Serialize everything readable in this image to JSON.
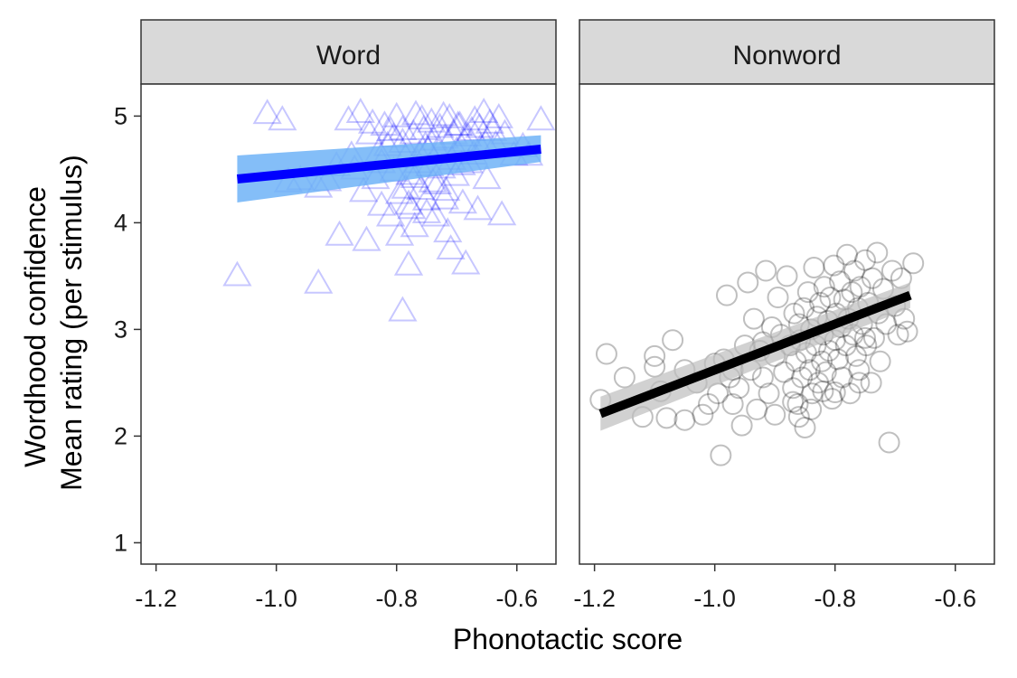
{
  "chart_data": {
    "type": "scatter",
    "xlabel": "Phonotactic score",
    "ylabel_lines": [
      "Wordhood confidence",
      "Mean rating (per stimulus)"
    ],
    "xlim": [
      -1.225,
      -0.535
    ],
    "ylim": [
      0.8,
      5.3
    ],
    "x_ticks": [
      -1.2,
      -1.0,
      -0.8,
      -0.6
    ],
    "x_tick_labels": [
      "-1.2",
      "-1.0",
      "-0.8",
      "-0.6"
    ],
    "y_ticks": [
      1,
      2,
      3,
      4,
      5
    ],
    "y_tick_labels": [
      "1",
      "2",
      "3",
      "4",
      "5"
    ],
    "grid": false,
    "panel_strip_color": "#d9d9d9",
    "panels": [
      {
        "strip": "Word",
        "marker": "triangle",
        "point_color": "#0000ff",
        "line_color": "#0000ff",
        "ribbon_color": "#6fb3f7",
        "fit": {
          "x": [
            -1.065,
            -0.56
          ],
          "y": [
            4.41,
            4.69
          ]
        },
        "ribbon": {
          "x": [
            -1.065,
            -0.56
          ],
          "lower": [
            4.19,
            4.57
          ],
          "upper": [
            4.63,
            4.82
          ]
        },
        "points": [
          [
            -1.065,
            3.49
          ],
          [
            -1.015,
            5.01
          ],
          [
            -0.99,
            4.95
          ],
          [
            -0.98,
            4.37
          ],
          [
            -0.96,
            4.39
          ],
          [
            -0.93,
            3.42
          ],
          [
            -0.93,
            4.32
          ],
          [
            -0.915,
            4.38
          ],
          [
            -0.9,
            4.52
          ],
          [
            -0.895,
            3.87
          ],
          [
            -0.88,
            4.95
          ],
          [
            -0.87,
            4.49
          ],
          [
            -0.86,
            5.02
          ],
          [
            -0.85,
            3.82
          ],
          [
            -0.845,
            4.82
          ],
          [
            -0.84,
            4.92
          ],
          [
            -0.835,
            4.4
          ],
          [
            -0.83,
            4.65
          ],
          [
            -0.825,
            4.55
          ],
          [
            -0.82,
            4.9
          ],
          [
            -0.815,
            4.71
          ],
          [
            -0.81,
            4.85
          ],
          [
            -0.805,
            4.79
          ],
          [
            -0.8,
            4.98
          ],
          [
            -0.795,
            3.87
          ],
          [
            -0.79,
            3.16
          ],
          [
            -0.79,
            4.86
          ],
          [
            -0.785,
            4.31
          ],
          [
            -0.785,
            4.6
          ],
          [
            -0.78,
            3.59
          ],
          [
            -0.78,
            4.16
          ],
          [
            -0.778,
            4.44
          ],
          [
            -0.775,
            4.12
          ],
          [
            -0.772,
            4.82
          ],
          [
            -0.77,
            3.95
          ],
          [
            -0.768,
            5.0
          ],
          [
            -0.765,
            4.55
          ],
          [
            -0.762,
            4.63
          ],
          [
            -0.76,
            4.3
          ],
          [
            -0.755,
            4.86
          ],
          [
            -0.752,
            4.71
          ],
          [
            -0.75,
            4.2
          ],
          [
            -0.745,
            4.52
          ],
          [
            -0.742,
            4.93
          ],
          [
            -0.74,
            4.37
          ],
          [
            -0.738,
            4.76
          ],
          [
            -0.735,
            4.05
          ],
          [
            -0.73,
            4.65
          ],
          [
            -0.728,
            4.88
          ],
          [
            -0.725,
            4.5
          ],
          [
            -0.72,
            4.78
          ],
          [
            -0.718,
            4.29
          ],
          [
            -0.715,
            3.9
          ],
          [
            -0.712,
            4.97
          ],
          [
            -0.71,
            3.74
          ],
          [
            -0.708,
            4.58
          ],
          [
            -0.705,
            4.82
          ],
          [
            -0.702,
            4.43
          ],
          [
            -0.7,
            4.66
          ],
          [
            -0.695,
            4.9
          ],
          [
            -0.69,
            4.17
          ],
          [
            -0.688,
            4.75
          ],
          [
            -0.685,
            3.6
          ],
          [
            -0.68,
            4.55
          ],
          [
            -0.675,
            4.85
          ],
          [
            -0.67,
            4.95
          ],
          [
            -0.665,
            4.11
          ],
          [
            -0.66,
            4.69
          ],
          [
            -0.655,
            5.02
          ],
          [
            -0.65,
            4.4
          ],
          [
            -0.645,
            4.92
          ],
          [
            -0.64,
            4.85
          ],
          [
            -0.635,
            4.72
          ],
          [
            -0.63,
            4.97
          ],
          [
            -0.625,
            4.06
          ],
          [
            -0.62,
            4.82
          ],
          [
            -0.605,
            4.62
          ],
          [
            -0.59,
            4.7
          ],
          [
            -0.58,
            4.62
          ],
          [
            -0.56,
            4.95
          ],
          [
            -0.875,
            4.62
          ],
          [
            -0.855,
            4.28
          ],
          [
            -0.825,
            4.15
          ],
          [
            -0.805,
            4.47
          ],
          [
            -0.795,
            4.26
          ],
          [
            -0.758,
            4.96
          ],
          [
            -0.748,
            4.67
          ],
          [
            -0.732,
            4.35
          ],
          [
            -0.722,
            4.99
          ],
          [
            -0.698,
            4.9
          ],
          [
            -0.692,
            4.53
          ],
          [
            -0.682,
            4.8
          ],
          [
            -0.672,
            4.63
          ],
          [
            -0.662,
            4.88
          ],
          [
            -0.652,
            4.73
          ],
          [
            -0.81,
            4.05
          ],
          [
            -0.79,
            4.74
          ],
          [
            -0.77,
            4.41
          ],
          [
            -0.75,
            4.08
          ],
          [
            -0.72,
            4.21
          ]
        ]
      },
      {
        "strip": "Nonword",
        "marker": "circle",
        "point_color": "#000000",
        "line_color": "#000000",
        "ribbon_color": "#bdbdbd",
        "fit": {
          "x": [
            -1.19,
            -0.675
          ],
          "y": [
            2.21,
            3.32
          ]
        },
        "ribbon": {
          "x": [
            -1.19,
            -0.675
          ],
          "lower": [
            2.05,
            3.2
          ],
          "upper": [
            2.37,
            3.44
          ]
        },
        "points": [
          [
            -1.19,
            2.34
          ],
          [
            -1.18,
            2.77
          ],
          [
            -1.15,
            2.55
          ],
          [
            -1.12,
            2.18
          ],
          [
            -1.1,
            2.65
          ],
          [
            -1.1,
            2.75
          ],
          [
            -1.09,
            2.42
          ],
          [
            -1.08,
            2.17
          ],
          [
            -1.07,
            2.9
          ],
          [
            -1.05,
            2.62
          ],
          [
            -1.05,
            2.15
          ],
          [
            -1.03,
            2.5
          ],
          [
            -1.02,
            2.2
          ],
          [
            -1.01,
            2.3
          ],
          [
            -1.0,
            2.68
          ],
          [
            -0.995,
            2.4
          ],
          [
            -0.99,
            1.82
          ],
          [
            -0.985,
            2.72
          ],
          [
            -0.98,
            3.32
          ],
          [
            -0.975,
            2.55
          ],
          [
            -0.97,
            2.3
          ],
          [
            -0.96,
            2.45
          ],
          [
            -0.955,
            2.1
          ],
          [
            -0.95,
            2.85
          ],
          [
            -0.945,
            3.44
          ],
          [
            -0.94,
            2.62
          ],
          [
            -0.935,
            3.1
          ],
          [
            -0.93,
            2.25
          ],
          [
            -0.925,
            2.8
          ],
          [
            -0.92,
            2.55
          ],
          [
            -0.915,
            3.55
          ],
          [
            -0.91,
            2.4
          ],
          [
            -0.905,
            3.02
          ],
          [
            -0.9,
            2.75
          ],
          [
            -0.9,
            2.2
          ],
          [
            -0.895,
            3.3
          ],
          [
            -0.89,
            2.95
          ],
          [
            -0.885,
            2.6
          ],
          [
            -0.88,
            3.5
          ],
          [
            -0.875,
            2.85
          ],
          [
            -0.87,
            2.45
          ],
          [
            -0.868,
            3.15
          ],
          [
            -0.865,
            2.7
          ],
          [
            -0.862,
            2.3
          ],
          [
            -0.86,
            3.05
          ],
          [
            -0.858,
            2.9
          ],
          [
            -0.855,
            2.55
          ],
          [
            -0.852,
            3.2
          ],
          [
            -0.85,
            2.08
          ],
          [
            -0.848,
            2.78
          ],
          [
            -0.845,
            3.35
          ],
          [
            -0.842,
            2.62
          ],
          [
            -0.84,
            3.0
          ],
          [
            -0.838,
            2.4
          ],
          [
            -0.835,
            3.58
          ],
          [
            -0.832,
            2.85
          ],
          [
            -0.83,
            3.12
          ],
          [
            -0.828,
            2.5
          ],
          [
            -0.825,
            3.25
          ],
          [
            -0.822,
            2.7
          ],
          [
            -0.82,
            2.95
          ],
          [
            -0.818,
            3.4
          ],
          [
            -0.815,
            2.6
          ],
          [
            -0.812,
            3.08
          ],
          [
            -0.81,
            2.8
          ],
          [
            -0.808,
            3.3
          ],
          [
            -0.805,
            2.35
          ],
          [
            -0.802,
            3.6
          ],
          [
            -0.8,
            2.9
          ],
          [
            -0.798,
            3.15
          ],
          [
            -0.795,
            2.72
          ],
          [
            -0.792,
            3.45
          ],
          [
            -0.79,
            3.02
          ],
          [
            -0.788,
            2.55
          ],
          [
            -0.785,
            3.28
          ],
          [
            -0.782,
            2.85
          ],
          [
            -0.78,
            3.7
          ],
          [
            -0.778,
            3.1
          ],
          [
            -0.775,
            2.4
          ],
          [
            -0.772,
            3.35
          ],
          [
            -0.77,
            2.95
          ],
          [
            -0.768,
            3.55
          ],
          [
            -0.765,
            2.75
          ],
          [
            -0.762,
            3.2
          ],
          [
            -0.76,
            2.62
          ],
          [
            -0.758,
            3.4
          ],
          [
            -0.755,
            3.05
          ],
          [
            -0.75,
            3.65
          ],
          [
            -0.748,
            2.85
          ],
          [
            -0.745,
            3.25
          ],
          [
            -0.74,
            2.5
          ],
          [
            -0.738,
            3.48
          ],
          [
            -0.735,
            2.92
          ],
          [
            -0.73,
            3.72
          ],
          [
            -0.728,
            3.15
          ],
          [
            -0.725,
            2.7
          ],
          [
            -0.72,
            3.38
          ],
          [
            -0.715,
            3.05
          ],
          [
            -0.71,
            1.94
          ],
          [
            -0.705,
            3.55
          ],
          [
            -0.7,
            3.22
          ],
          [
            -0.695,
            2.95
          ],
          [
            -0.69,
            3.48
          ],
          [
            -0.685,
            3.1
          ],
          [
            -0.68,
            2.98
          ],
          [
            -0.67,
            3.62
          ],
          [
            -0.86,
            2.18
          ],
          [
            -0.84,
            2.25
          ],
          [
            -0.82,
            2.42
          ],
          [
            -0.8,
            2.41
          ],
          [
            -0.75,
            2.92
          ],
          [
            -0.76,
            2.5
          ],
          [
            -0.92,
            2.88
          ],
          [
            -0.97,
            2.62
          ],
          [
            -0.87,
            2.32
          ]
        ]
      }
    ]
  }
}
